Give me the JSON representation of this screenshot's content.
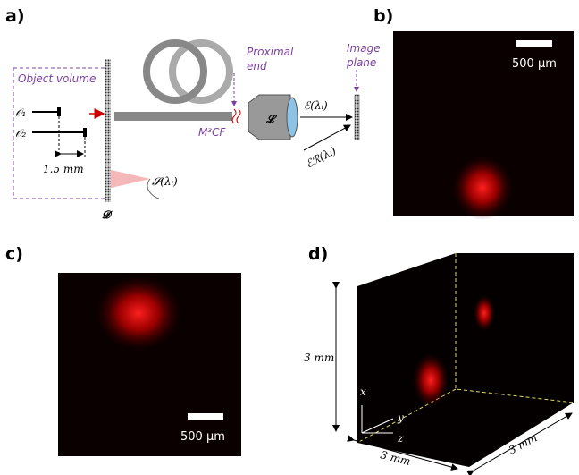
{
  "panel_labels": [
    "a)",
    "b)",
    "c)",
    "d)"
  ],
  "panel_a": {
    "object_volume": "Object volume",
    "o1": "𝒪₁",
    "o2": "𝒪₂",
    "distance": "1.5 mm",
    "diffuser": "𝓓",
    "source": "𝓢(λᵢ)",
    "fiber": "M³CF",
    "proximal_end": [
      "Proximal",
      "end"
    ],
    "lens": "𝓛",
    "field": "ℰ(λᵢ)",
    "reference": "ℰℛ(λᵢ)",
    "image_plane": [
      "Image",
      "plane"
    ]
  },
  "panel_b": {
    "scale_bar": "500 μm"
  },
  "panel_c": {
    "scale_bar": "500 μm"
  },
  "panel_d": {
    "height": "3 mm",
    "depth": "3 mm",
    "width": "3 mm",
    "axes": [
      "x",
      "y",
      "z"
    ]
  }
}
